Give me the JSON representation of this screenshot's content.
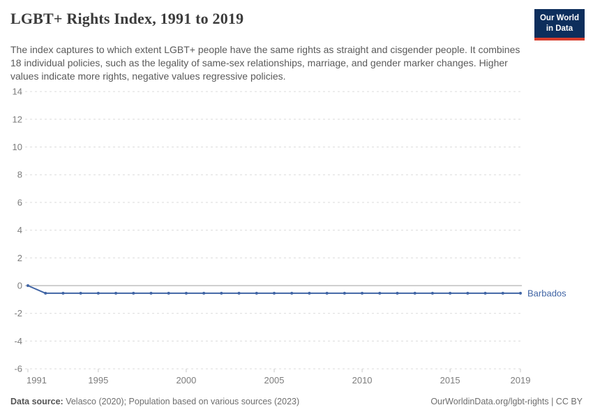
{
  "header": {
    "title": "LGBT+ Rights Index, 1991 to 2019",
    "subtitle": "The index captures to which extent LGBT+ people have the same rights as straight and cisgender people. It combines 18 individual policies, such as the legality of same-sex relationships, marriage, and gender marker changes. Higher values indicate more rights, negative values regressive policies.",
    "logo": {
      "line1": "Our World",
      "line2": "in Data"
    }
  },
  "footer": {
    "datasource_label": "Data source:",
    "datasource_text": " Velasco (2020); Population based on various sources (2023)",
    "link_text": "OurWorldinData.org/lgbt-rights | CC BY"
  },
  "colors": {
    "series_blue": "#4165a5",
    "logo_navy": "#0d2e5c",
    "logo_red": "#d73c2c",
    "grid": "#dcdcdc",
    "zero_line": "#bfbfbf",
    "tick_text": "#7d7d7d",
    "axis_tick": "#c8c8c8"
  },
  "chart_data": {
    "type": "line",
    "title": "LGBT+ Rights Index, 1991 to 2019",
    "xlabel": "",
    "ylabel": "",
    "xlim": [
      1991,
      2019
    ],
    "ylim": [
      -6,
      14
    ],
    "x_ticks": [
      1991,
      1995,
      2000,
      2005,
      2010,
      2015,
      2019
    ],
    "y_ticks": [
      14,
      12,
      10,
      8,
      6,
      4,
      2,
      0,
      -2,
      -4,
      -6
    ],
    "grid": "horizontal-dashed",
    "zero_line": true,
    "legend_position": "end-of-line-label",
    "series": [
      {
        "name": "Barbados",
        "color": "#4165a5",
        "x": [
          1991,
          1992,
          1993,
          1994,
          1995,
          1996,
          1997,
          1998,
          1999,
          2000,
          2001,
          2002,
          2003,
          2004,
          2005,
          2006,
          2007,
          2008,
          2009,
          2010,
          2011,
          2012,
          2013,
          2014,
          2015,
          2016,
          2017,
          2018,
          2019
        ],
        "values": [
          0,
          -0.55,
          -0.55,
          -0.55,
          -0.55,
          -0.55,
          -0.55,
          -0.55,
          -0.55,
          -0.55,
          -0.55,
          -0.55,
          -0.55,
          -0.55,
          -0.55,
          -0.55,
          -0.55,
          -0.55,
          -0.55,
          -0.55,
          -0.55,
          -0.55,
          -0.55,
          -0.55,
          -0.55,
          -0.55,
          -0.55,
          -0.55,
          -0.55
        ]
      }
    ]
  }
}
